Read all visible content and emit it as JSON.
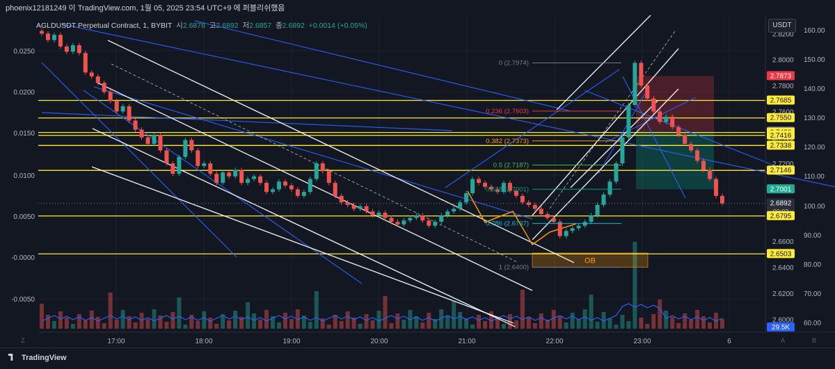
{
  "header": {
    "text": "phoenix12181249 이 TradingView.com, 1월 05, 2025 23:54 UTC+9 에 퍼블리쉬했음"
  },
  "legend": {
    "symbol": "AGLDUSDT Perpetual Contract, 1, BYBIT",
    "open_label": "시",
    "open": "2.6878",
    "high_label": "고",
    "high": "2.6892",
    "low_label": "저",
    "low": "2.6857",
    "close_label": "종",
    "close": "2.6892",
    "change": "+0.0014 (+0.05%)"
  },
  "currency": "USDT",
  "footer": {
    "brand": "TradingView"
  },
  "chart_data": {
    "type": "line",
    "title": "AGLDUSDT Perpetual Contract, 1, BYBIT",
    "x_ticks": [
      "17:00",
      "18:00",
      "19:00",
      "20:00",
      "21:00",
      "22:00",
      "23:00",
      "6"
    ],
    "left_axis_ticks": [
      "0.0250",
      "0.0200",
      "0.0150",
      "0.0100",
      "0.0050",
      "-0.0000",
      "-0.0050"
    ],
    "price_axis_ticks": [
      "2.8200",
      "2.8000",
      "2.7800",
      "2.7600",
      "2.7400",
      "2.7200",
      "2.7000",
      "2.6800",
      "2.6600",
      "2.6400",
      "2.6200",
      "2.6000"
    ],
    "volume_axis_ticks": [
      "160.00",
      "150.00",
      "140.00",
      "130.00",
      "120.00",
      "110.00",
      "100.00",
      "90.00",
      "80.00",
      "70.00",
      "60.00"
    ],
    "ylim": [
      2.59,
      2.833
    ],
    "series": [
      {
        "values": [
          2.82,
          2.815,
          2.819,
          2.81,
          2.806,
          2.811,
          2.805,
          2.79,
          2.787,
          2.782,
          2.775,
          2.768,
          2.76,
          2.764,
          2.753,
          2.746,
          2.74,
          2.735,
          2.742,
          2.73,
          2.72,
          2.712,
          2.725,
          2.738,
          2.73,
          2.718,
          2.72,
          2.712,
          2.705,
          2.713,
          2.71,
          2.715,
          2.705,
          2.708,
          2.71,
          2.705,
          2.698,
          2.7,
          2.706,
          2.703,
          2.7,
          2.695,
          2.698,
          2.708,
          2.72,
          2.714,
          2.705,
          2.695,
          2.69,
          2.688,
          2.685,
          2.687,
          2.683,
          2.68,
          2.682,
          2.678,
          2.675,
          2.673,
          2.676,
          2.678,
          2.68,
          2.676,
          2.672,
          2.675,
          2.68,
          2.683,
          2.685,
          2.69,
          2.697,
          2.708,
          2.705,
          2.702,
          2.7,
          2.698,
          2.705,
          2.699,
          2.695,
          2.69,
          2.688,
          2.685,
          2.681,
          2.678,
          2.675,
          2.664,
          2.668,
          2.67,
          2.672,
          2.675,
          2.68,
          2.688,
          2.696,
          2.706,
          2.72,
          2.74,
          2.765,
          2.7974,
          2.78,
          2.77,
          2.76,
          2.752,
          2.756,
          2.748,
          2.742,
          2.735,
          2.73,
          2.722,
          2.715,
          2.708,
          2.695,
          2.6892
        ]
      }
    ],
    "fib_levels": [
      {
        "label": "0 (2.7974)",
        "value": 2.7974,
        "color": "#787b86"
      },
      {
        "label": "0.236 (2.7603)",
        "value": 2.7603,
        "color": "#f23645"
      },
      {
        "label": "0.382 (2.7373)",
        "value": 2.7373,
        "color": "#ff9800"
      },
      {
        "label": "0.5 (2.7187)",
        "value": 2.7187,
        "color": "#4caf50"
      },
      {
        "label": "0.618 (2.7001)",
        "value": 2.7001,
        "color": "#089981"
      },
      {
        "label": "0.786 (2.6737)",
        "value": 2.6737,
        "color": "#00bcd4"
      },
      {
        "label": "1 (2.6400)",
        "value": 2.64,
        "color": "#787b86"
      }
    ],
    "horizontal_levels": [
      2.7685,
      2.755,
      2.7438,
      2.7416,
      2.7338,
      2.7146,
      2.6795,
      2.6503
    ],
    "price_labels": [
      {
        "text": "2.7873",
        "value": 2.7873,
        "bg": "#f23645",
        "fg": "#ffffff"
      },
      {
        "text": "2.7685",
        "value": 2.7685,
        "bg": "#ffeb3b",
        "fg": "#131722"
      },
      {
        "text": "2.7550",
        "value": 2.755,
        "bg": "#ffeb3b",
        "fg": "#131722"
      },
      {
        "text": "2.7445",
        "value": 2.7445,
        "bg": "#787b86",
        "fg": "#ffffff"
      },
      {
        "text": "2.7438",
        "value": 2.7438,
        "bg": "#ffeb3b",
        "fg": "#131722"
      },
      {
        "text": "2.7416",
        "value": 2.7416,
        "bg": "#ffeb3b",
        "fg": "#131722"
      },
      {
        "text": "2.7338",
        "value": 2.7338,
        "bg": "#ffeb3b",
        "fg": "#131722"
      },
      {
        "text": "2.7146",
        "value": 2.7146,
        "bg": "#ffeb3b",
        "fg": "#131722"
      },
      {
        "text": "2.7001",
        "value": 2.7001,
        "bg": "#22ab94",
        "fg": "#ffffff"
      },
      {
        "text": "2.6892",
        "value": 2.6892,
        "bg": "#2a2e39",
        "fg": "#ffffff",
        "sub": "00:03"
      },
      {
        "text": "2.6795",
        "value": 2.6795,
        "bg": "#ffeb3b",
        "fg": "#131722"
      },
      {
        "text": "2.6503",
        "value": 2.6503,
        "bg": "#ffeb3b",
        "fg": "#131722"
      }
    ],
    "volume_label": "29.5K",
    "annotations": [
      "OB"
    ],
    "colors": {
      "up": "#26a69a",
      "down": "#ef5350",
      "level": "#ffeb3b",
      "trend": "#2962ff",
      "channel": "#ffffff",
      "volume_ma": "#2962ff"
    }
  }
}
